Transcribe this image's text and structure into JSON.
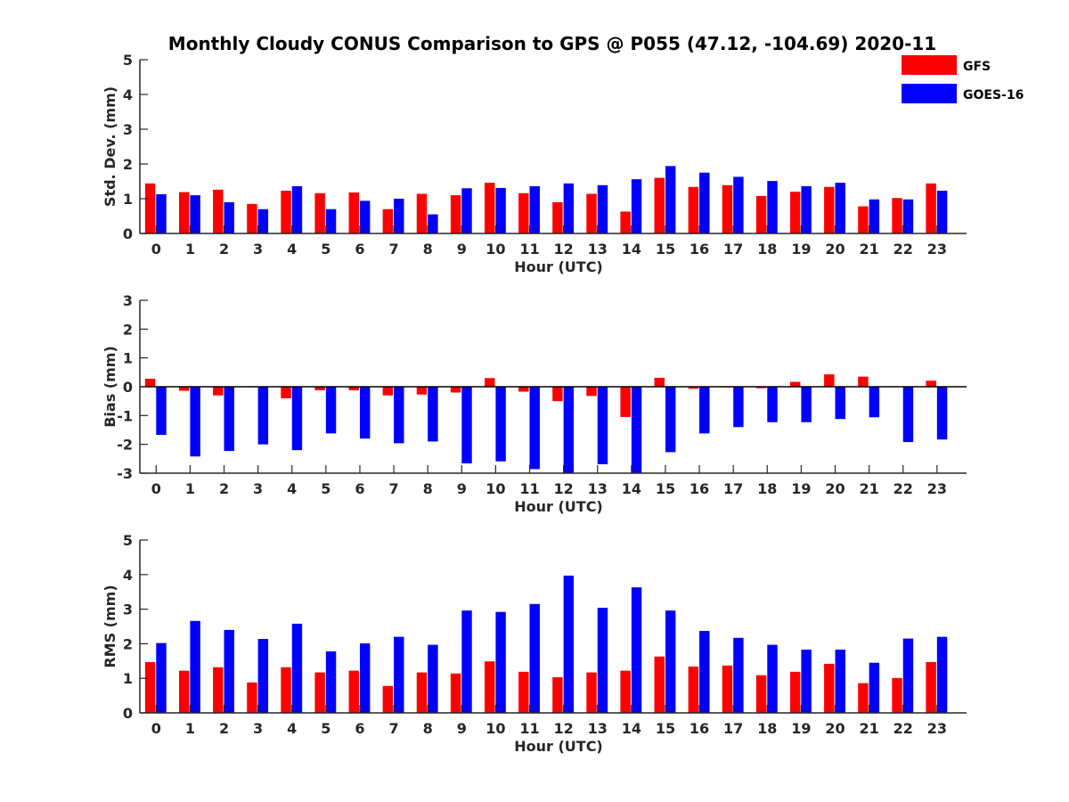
{
  "title": "Monthly Cloudy CONUS Comparison to GPS @ P055 (47.12, -104.69) 2020-11",
  "legend": [
    {
      "name": "GFS",
      "color": "#ff0000"
    },
    {
      "name": "GOES-16",
      "color": "#0000ff"
    }
  ],
  "chart_data": [
    {
      "type": "bar",
      "categories": [
        "0",
        "1",
        "2",
        "3",
        "4",
        "5",
        "6",
        "7",
        "8",
        "9",
        "10",
        "11",
        "12",
        "13",
        "14",
        "15",
        "16",
        "17",
        "18",
        "19",
        "20",
        "21",
        "22",
        "23"
      ],
      "xlabel": "Hour (UTC)",
      "ylabel": "Std. Dev. (mm)",
      "ylim": [
        0,
        5
      ],
      "yticks": [
        "0",
        "1",
        "2",
        "3",
        "4",
        "5"
      ],
      "series": [
        {
          "name": "GFS",
          "color": "#ff0000",
          "values": [
            1.44,
            1.19,
            1.26,
            0.85,
            1.23,
            1.16,
            1.18,
            0.7,
            1.14,
            1.1,
            1.46,
            1.16,
            0.9,
            1.14,
            0.63,
            1.6,
            1.34,
            1.39,
            1.08,
            1.2,
            1.34,
            0.78,
            1.02,
            1.44
          ]
        },
        {
          "name": "GOES-16",
          "color": "#0000ff",
          "values": [
            1.13,
            1.1,
            0.9,
            0.7,
            1.36,
            0.7,
            0.94,
            1.0,
            0.55,
            1.3,
            1.31,
            1.36,
            1.44,
            1.39,
            1.56,
            1.94,
            1.75,
            1.63,
            1.51,
            1.36,
            1.46,
            0.98,
            0.98,
            1.23
          ]
        }
      ]
    },
    {
      "type": "bar",
      "categories": [
        "0",
        "1",
        "2",
        "3",
        "4",
        "5",
        "6",
        "7",
        "8",
        "9",
        "10",
        "11",
        "12",
        "13",
        "14",
        "15",
        "16",
        "17",
        "18",
        "19",
        "20",
        "21",
        "22",
        "23"
      ],
      "xlabel": "Hour (UTC)",
      "ylabel": "Bias (mm)",
      "ylim": [
        -3,
        3
      ],
      "yticks": [
        "-3",
        "-2",
        "-1",
        "0",
        "1",
        "2",
        "3"
      ],
      "zero_line": true,
      "series": [
        {
          "name": "GFS",
          "color": "#ff0000",
          "values": [
            0.28,
            -0.14,
            -0.3,
            -0.02,
            -0.4,
            -0.12,
            -0.12,
            -0.3,
            -0.27,
            -0.2,
            0.3,
            -0.17,
            -0.5,
            -0.32,
            -1.05,
            0.31,
            -0.07,
            -0.02,
            -0.05,
            0.17,
            0.43,
            0.35,
            0.0,
            0.21
          ]
        },
        {
          "name": "GOES-16",
          "color": "#0000ff",
          "values": [
            -1.67,
            -2.42,
            -2.23,
            -2.0,
            -2.2,
            -1.62,
            -1.8,
            -1.96,
            -1.9,
            -2.66,
            -2.59,
            -2.86,
            -3.0,
            -2.69,
            -3.0,
            -2.27,
            -1.62,
            -1.4,
            -1.23,
            -1.23,
            -1.12,
            -1.06,
            -1.92,
            -1.83
          ]
        }
      ]
    },
    {
      "type": "bar",
      "categories": [
        "0",
        "1",
        "2",
        "3",
        "4",
        "5",
        "6",
        "7",
        "8",
        "9",
        "10",
        "11",
        "12",
        "13",
        "14",
        "15",
        "16",
        "17",
        "18",
        "19",
        "20",
        "21",
        "22",
        "23"
      ],
      "xlabel": "Hour (UTC)",
      "ylabel": "RMS (mm)",
      "ylim": [
        0,
        5
      ],
      "yticks": [
        "0",
        "1",
        "2",
        "3",
        "4",
        "5"
      ],
      "series": [
        {
          "name": "GFS",
          "color": "#ff0000",
          "values": [
            1.47,
            1.22,
            1.32,
            0.88,
            1.32,
            1.17,
            1.22,
            0.78,
            1.17,
            1.14,
            1.49,
            1.19,
            1.03,
            1.17,
            1.22,
            1.63,
            1.34,
            1.37,
            1.09,
            1.19,
            1.42,
            0.86,
            1.01,
            1.47
          ]
        },
        {
          "name": "GOES-16",
          "color": "#0000ff",
          "values": [
            2.02,
            2.66,
            2.4,
            2.14,
            2.58,
            1.78,
            2.01,
            2.2,
            1.97,
            2.96,
            2.92,
            3.15,
            3.97,
            3.04,
            3.63,
            2.96,
            2.37,
            2.17,
            1.97,
            1.83,
            1.83,
            1.45,
            2.15,
            2.2
          ]
        }
      ]
    }
  ]
}
